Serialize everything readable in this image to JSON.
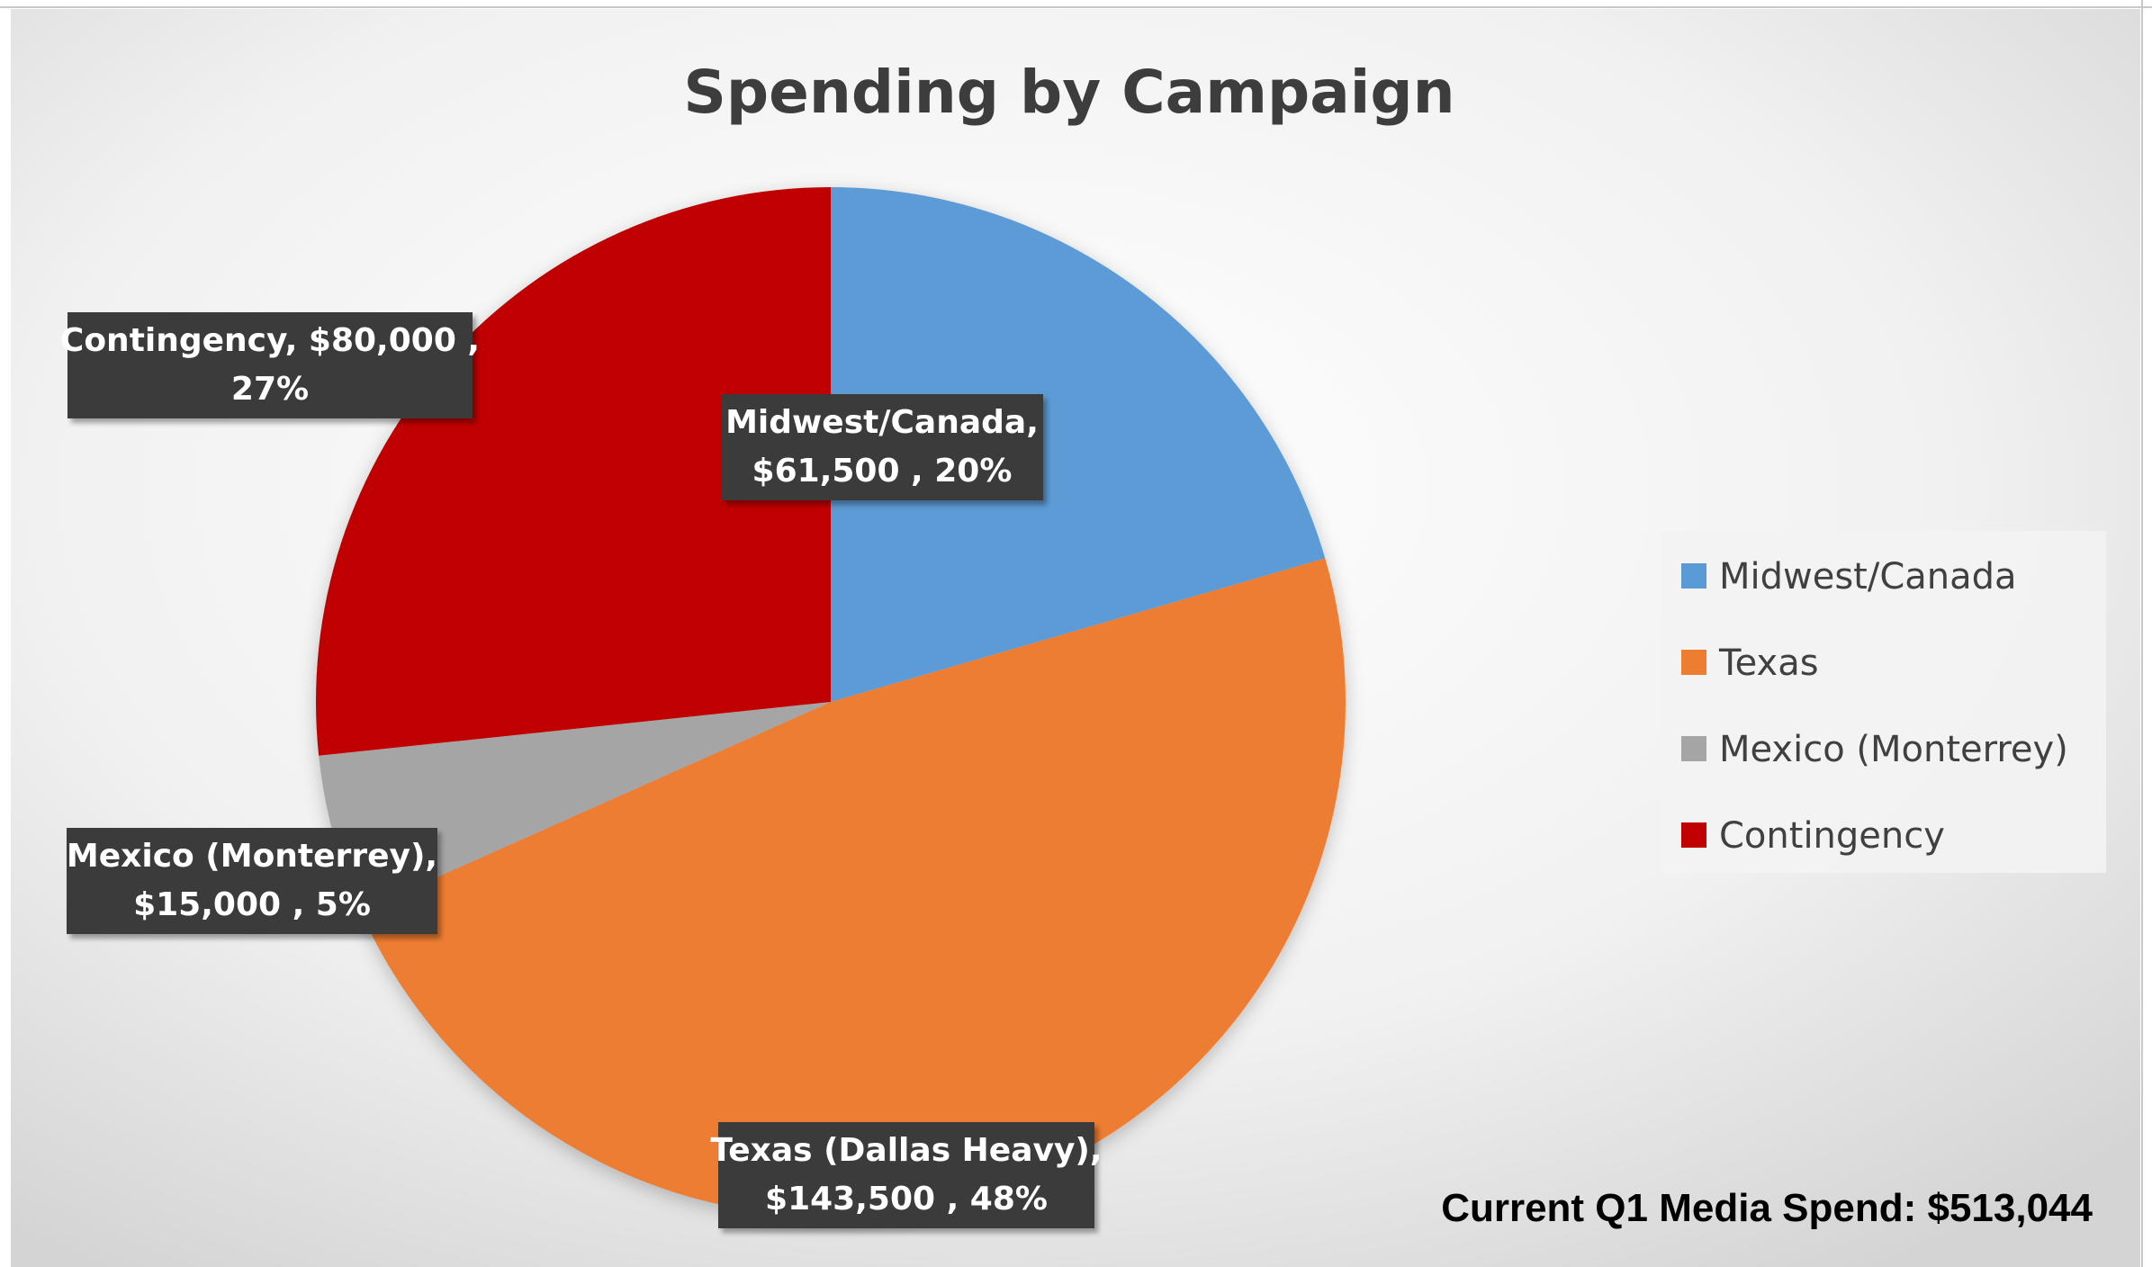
{
  "chart_data": {
    "type": "pie",
    "title": "Spending by Campaign",
    "categories": [
      "Midwest/Canada",
      "Texas",
      "Mexico (Monterrey)",
      "Contingency"
    ],
    "values": [
      61500,
      143500,
      15000,
      80000
    ],
    "percentages": [
      20,
      48,
      5,
      27
    ],
    "colors": [
      "#5b9bd5",
      "#ed7d31",
      "#a5a5a5",
      "#c00000"
    ],
    "data_labels": [
      [
        "Midwest/Canada,",
        "$61,500 , 20%"
      ],
      [
        "Texas (Dallas Heavy),",
        "$143,500 , 48%"
      ],
      [
        "Mexico (Monterrey),",
        "$15,000 , 5%"
      ],
      [
        "Contingency, $80,000 ,",
        "27%"
      ]
    ],
    "legend": {
      "position": "right",
      "entries": [
        "Midwest/Canada",
        "Texas",
        "Mexico (Monterrey)",
        "Contingency"
      ]
    },
    "start_angle_deg": 0,
    "direction": "clockwise"
  },
  "footnote": "Current Q1 Media Spend: $513,044"
}
